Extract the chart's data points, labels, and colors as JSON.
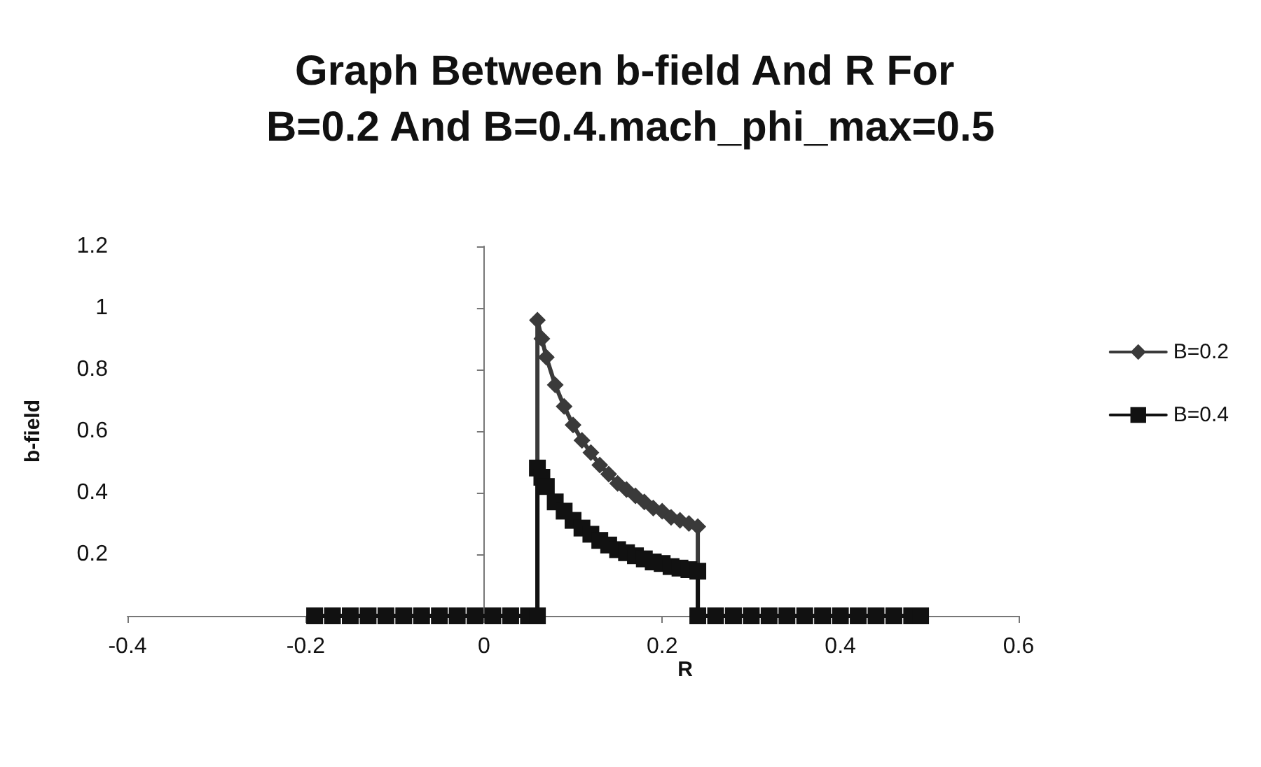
{
  "chart_data": {
    "type": "line",
    "title": "Graph Between b-field And R For B=0.2 And B=0.4.mach_phi_max=0.5",
    "xlabel": "R",
    "ylabel": "b-field",
    "xlim": [
      -0.4,
      0.6
    ],
    "xticks": [
      -0.4,
      -0.2,
      0,
      0.2,
      0.4,
      0.6
    ],
    "ylim": [
      0,
      1.2
    ],
    "yticks": [
      {
        "value": 0,
        "label": null
      },
      0.2,
      0.4,
      0.6,
      0.8,
      1,
      1.2
    ],
    "legend": "right",
    "line_style": "solid",
    "series": [
      {
        "name": "B=0.2",
        "color": "#3a3a3a",
        "marker": "diamond",
        "x": [
          -0.19,
          -0.17,
          -0.15,
          -0.13,
          -0.11,
          -0.09,
          -0.07,
          -0.05,
          -0.03,
          -0.01,
          0.01,
          0.03,
          0.05,
          0.06,
          0.06,
          0.065,
          0.07,
          0.08,
          0.09,
          0.1,
          0.11,
          0.12,
          0.13,
          0.14,
          0.15,
          0.16,
          0.17,
          0.18,
          0.19,
          0.2,
          0.21,
          0.22,
          0.23,
          0.24,
          0.24,
          0.26,
          0.28,
          0.3,
          0.32,
          0.34,
          0.36,
          0.38,
          0.4,
          0.42,
          0.44,
          0.46,
          0.48,
          0.49
        ],
        "values": [
          0,
          0,
          0,
          0,
          0,
          0,
          0,
          0,
          0,
          0,
          0,
          0,
          0,
          0,
          0.96,
          0.9,
          0.84,
          0.75,
          0.68,
          0.62,
          0.57,
          0.53,
          0.49,
          0.46,
          0.43,
          0.41,
          0.39,
          0.37,
          0.35,
          0.34,
          0.32,
          0.31,
          0.3,
          0.29,
          0,
          0,
          0,
          0,
          0,
          0,
          0,
          0,
          0,
          0,
          0,
          0,
          0,
          0
        ]
      },
      {
        "name": "B=0.4",
        "color": "#111111",
        "marker": "square",
        "x": [
          -0.19,
          -0.17,
          -0.15,
          -0.13,
          -0.11,
          -0.09,
          -0.07,
          -0.05,
          -0.03,
          -0.01,
          0.01,
          0.03,
          0.05,
          0.06,
          0.06,
          0.065,
          0.07,
          0.08,
          0.09,
          0.1,
          0.11,
          0.12,
          0.13,
          0.14,
          0.15,
          0.16,
          0.17,
          0.18,
          0.19,
          0.2,
          0.21,
          0.22,
          0.23,
          0.24,
          0.24,
          0.26,
          0.28,
          0.3,
          0.32,
          0.34,
          0.36,
          0.38,
          0.4,
          0.42,
          0.44,
          0.46,
          0.48,
          0.49
        ],
        "values": [
          0,
          0,
          0,
          0,
          0,
          0,
          0,
          0,
          0,
          0,
          0,
          0,
          0,
          0,
          0.48,
          0.45,
          0.42,
          0.37,
          0.34,
          0.31,
          0.285,
          0.265,
          0.245,
          0.23,
          0.215,
          0.205,
          0.195,
          0.185,
          0.175,
          0.17,
          0.16,
          0.155,
          0.15,
          0.145,
          0,
          0,
          0,
          0,
          0,
          0,
          0,
          0,
          0,
          0,
          0,
          0,
          0,
          0
        ]
      }
    ]
  }
}
